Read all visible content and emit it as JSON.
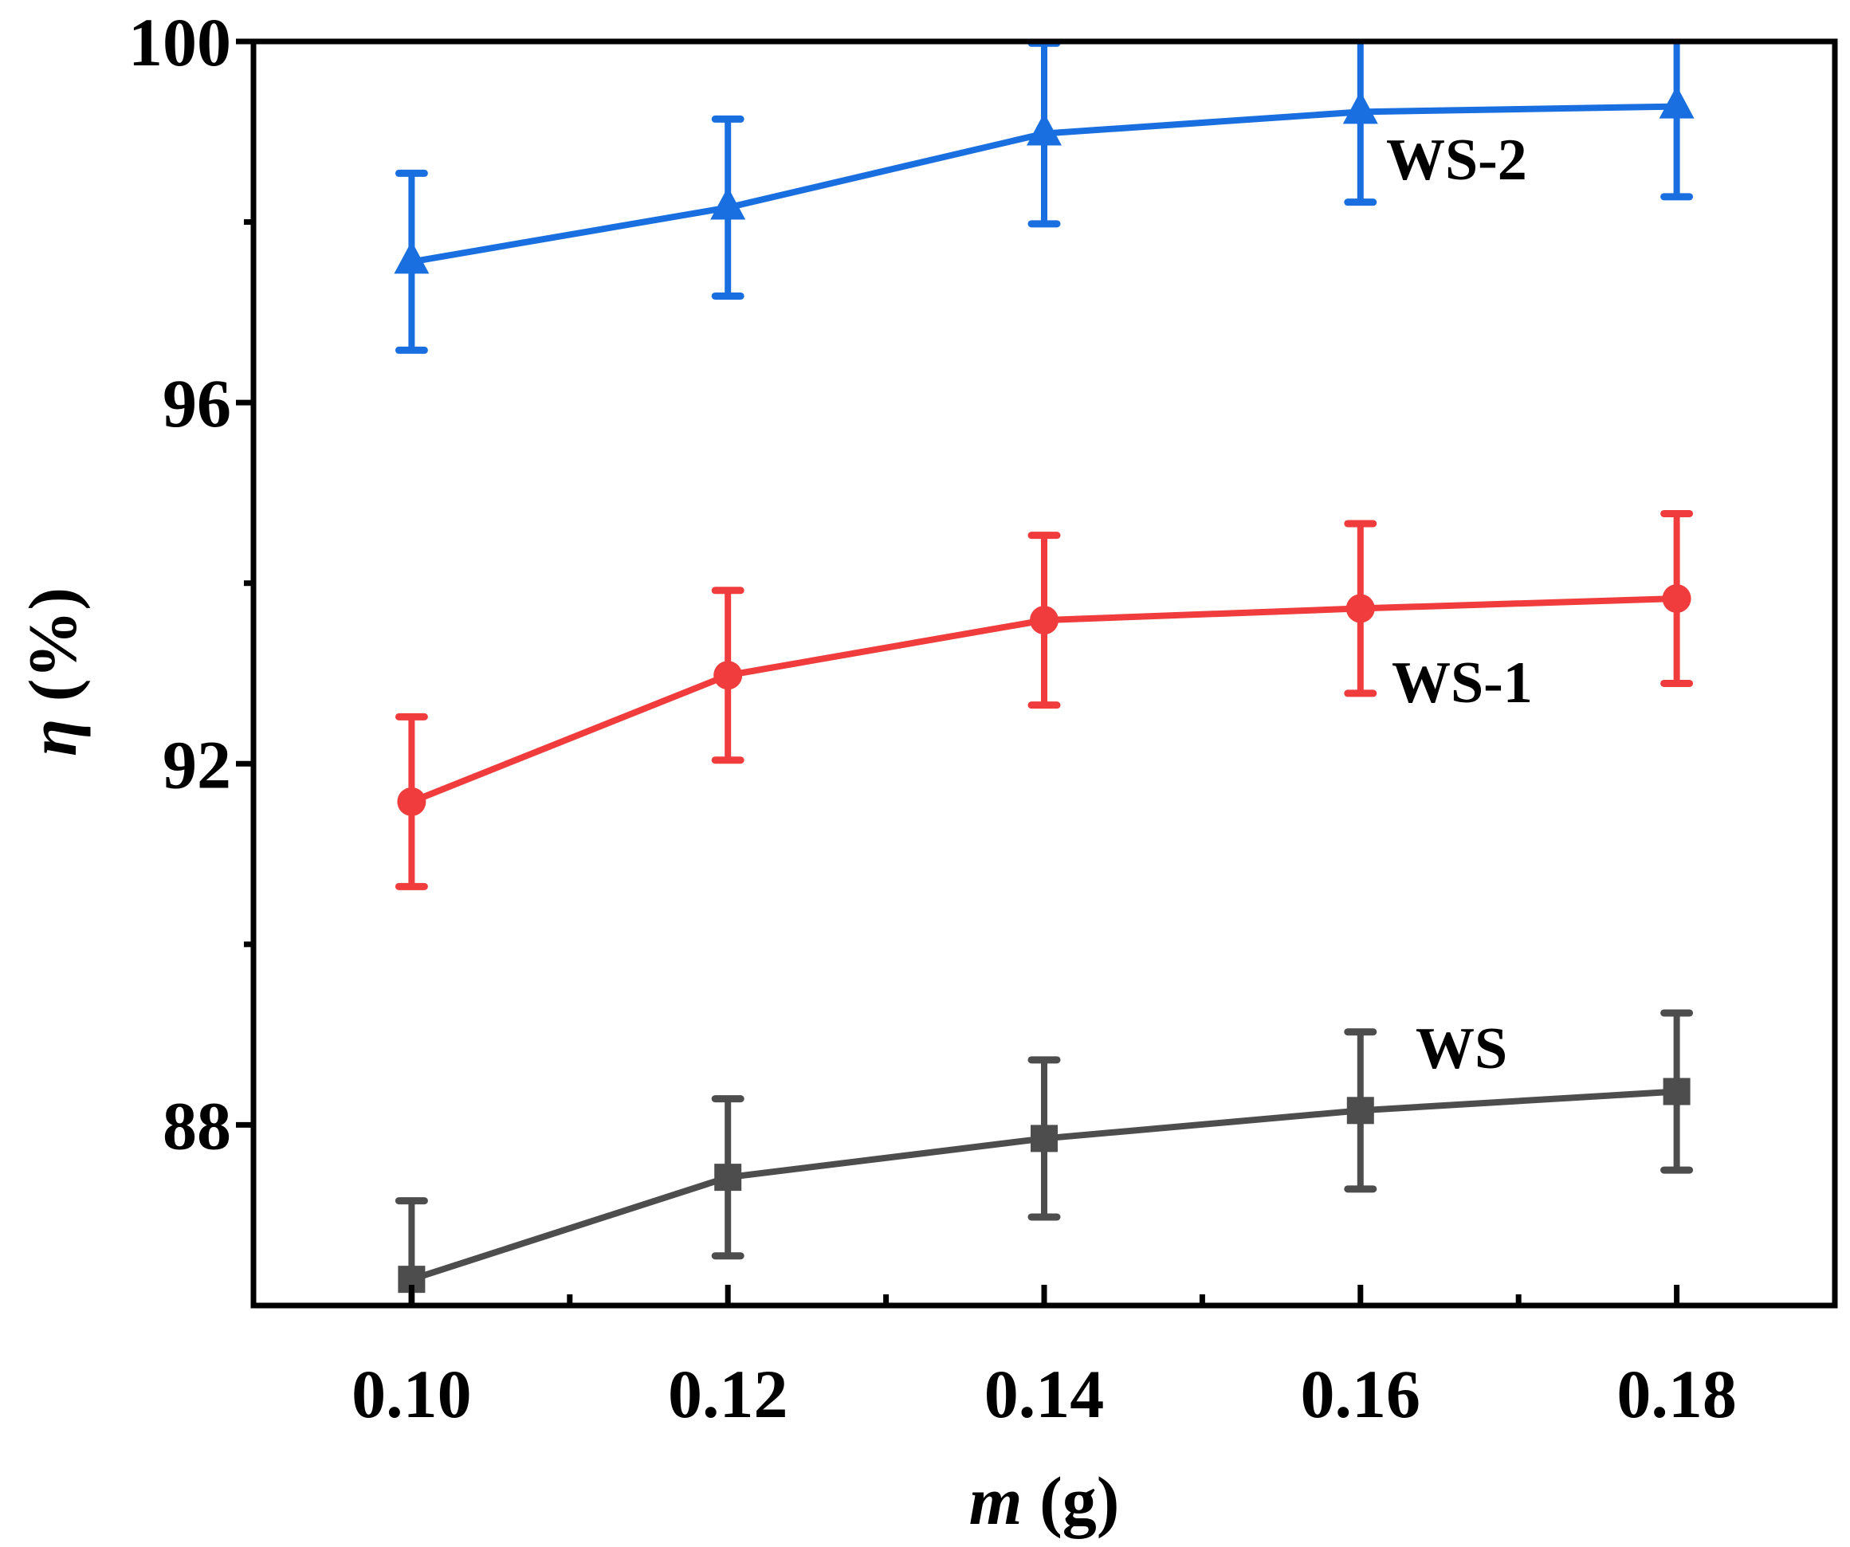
{
  "chart_data": {
    "type": "line",
    "title": "",
    "xlabel_var": "m",
    "xlabel_unit": "(g)",
    "ylabel_var": "η",
    "ylabel_unit": "(%)",
    "xlim": [
      0.09,
      0.19
    ],
    "ylim": [
      86,
      100
    ],
    "xticks": [
      "0.10",
      "0.12",
      "0.14",
      "0.16",
      "0.18"
    ],
    "yticks": [
      "88",
      "92",
      "96",
      "100"
    ],
    "grid": false,
    "x": [
      0.1,
      0.12,
      0.14,
      0.16,
      0.18
    ],
    "series": [
      {
        "name": "WS-2",
        "marker": "triangle",
        "color": "#1a6fe0",
        "values": [
          97.56,
          98.16,
          98.98,
          99.22,
          99.28
        ],
        "errors": [
          0.98,
          0.98,
          1.0,
          1.0,
          1.0
        ]
      },
      {
        "name": "WS-1",
        "marker": "circle",
        "color": "#f03c3c",
        "values": [
          91.58,
          92.98,
          93.59,
          93.72,
          93.83
        ],
        "errors": [
          0.94,
          0.94,
          0.94,
          0.94,
          0.94
        ]
      },
      {
        "name": "WS",
        "marker": "square",
        "color": "#4d4d4d",
        "values": [
          86.29,
          87.42,
          87.85,
          88.16,
          88.37
        ],
        "errors": [
          0.87,
          0.87,
          0.87,
          0.87,
          0.87
        ]
      }
    ]
  }
}
